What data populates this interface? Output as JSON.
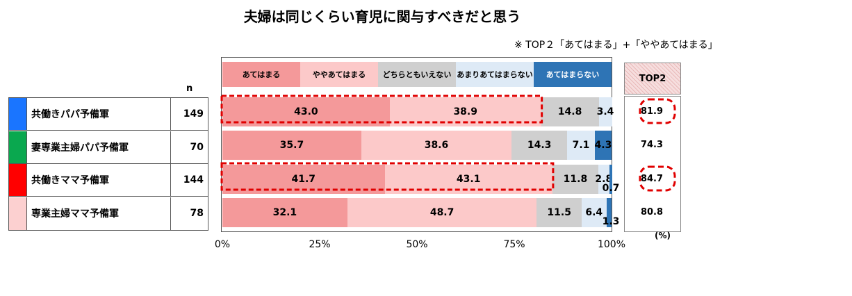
{
  "title": "夫婦は同じくらい育児に関与すべきだと思う",
  "note": "※ TOP２「あてはまる」+「ややあてはまる」",
  "n_header": "n",
  "top2_header": "TOP2",
  "percent_label": "(%)",
  "colors": {
    "c1": "#f4999a",
    "c2": "#fcc9c9",
    "c3": "#cfcfcf",
    "c4": "#deeaf6",
    "c5": "#2e74b5"
  },
  "chart_data": {
    "type": "bar",
    "orientation": "horizontal",
    "stacked": true,
    "categories": [
      "共働きパパ予備軍",
      "妻専業主婦パパ予備軍",
      "共働きママ予備軍",
      "専業主婦ママ予備軍"
    ],
    "n": [
      "149",
      "70",
      "144",
      "78"
    ],
    "group_colors": [
      "#1a75ff",
      "#0aa84f",
      "#ff0000",
      "#fcd0d0"
    ],
    "series": [
      {
        "name": "あてはまる",
        "values": [
          43.0,
          35.7,
          41.7,
          32.1
        ],
        "labels": [
          "43.0",
          "35.7",
          "41.7",
          "32.1"
        ]
      },
      {
        "name": "ややあてはまる",
        "values": [
          38.9,
          38.6,
          43.1,
          48.7
        ],
        "labels": [
          "38.9",
          "38.6",
          "43.1",
          "48.7"
        ]
      },
      {
        "name": "どちらともいえない",
        "values": [
          14.8,
          14.3,
          11.8,
          11.5
        ],
        "labels": [
          "14.8",
          "14.3",
          "11.8",
          "11.5"
        ]
      },
      {
        "name": "あまりあてはまらない",
        "values": [
          3.4,
          7.1,
          2.8,
          6.4
        ],
        "labels": [
          "3.4",
          "7.1",
          "2.8",
          "6.4"
        ]
      },
      {
        "name": "あてはまらない",
        "values": [
          0.0,
          4.3,
          0.7,
          1.3
        ],
        "labels": [
          "",
          "4.3",
          "0.7",
          "1.3"
        ]
      }
    ],
    "top2": [
      "81.9",
      "74.3",
      "84.7",
      "80.8"
    ],
    "top2_highlighted": [
      true,
      false,
      true,
      false
    ],
    "xlim": [
      0,
      100
    ],
    "xticks": [
      "0%",
      "25%",
      "50%",
      "75%",
      "100%"
    ],
    "legend_position": "top"
  }
}
